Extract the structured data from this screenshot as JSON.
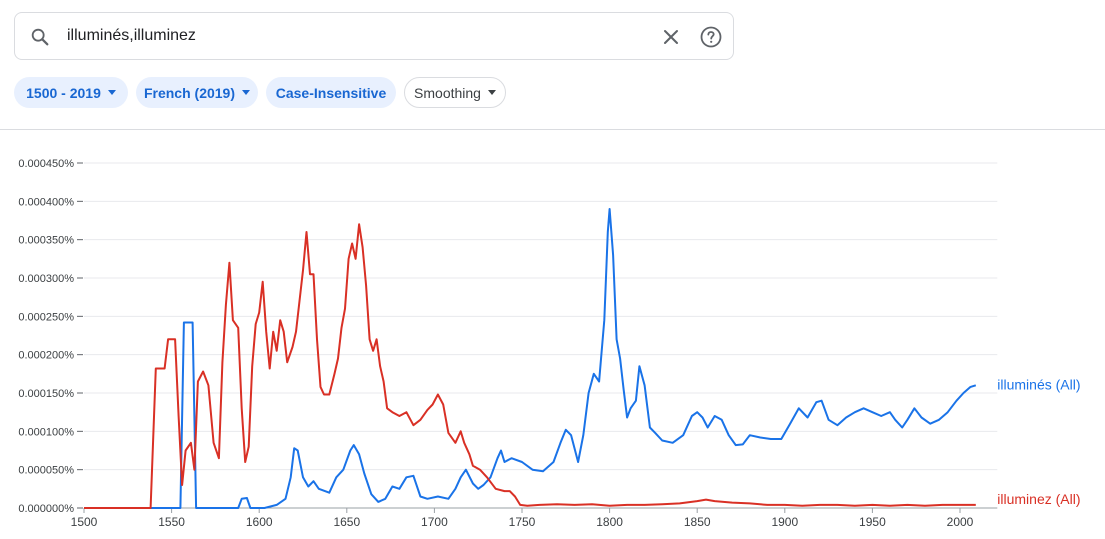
{
  "search": {
    "query": "illuminés,illuminez"
  },
  "filters": {
    "year_range": "1500 - 2019",
    "corpus": "French (2019)",
    "case": "Case-Insensitive",
    "smoothing": "Smoothing"
  },
  "icons": {
    "search": "search-icon",
    "clear": "close-icon",
    "help": "help-circle-icon",
    "dropdown": "caret-down-icon"
  },
  "colors": {
    "chip_bg": "#e8f0fe",
    "chip_text": "#1967d2",
    "grid": "#e8eaed",
    "axis": "#9aa0a6"
  },
  "chart_data": {
    "type": "line",
    "xlim": [
      1500,
      2019
    ],
    "ylim": [
      0,
      0.00045
    ],
    "x_ticks": [
      1500,
      1550,
      1600,
      1650,
      1700,
      1750,
      1800,
      1850,
      1900,
      1950,
      2000
    ],
    "x_tick_labels": [
      "1500",
      "1550",
      "1600",
      "1650",
      "1700",
      "1750",
      "1800",
      "1850",
      "1900",
      "1950",
      "2000"
    ],
    "y_ticks": [
      0,
      5e-05,
      0.0001,
      0.00015,
      0.0002,
      0.00025,
      0.0003,
      0.00035,
      0.0004,
      0.00045
    ],
    "y_tick_labels": [
      "0.000000%",
      "0.000050%",
      "0.000100%",
      "0.000150%",
      "0.000200%",
      "0.000250%",
      "0.000300%",
      "0.000350%",
      "0.000400%",
      "0.000450%"
    ],
    "grid": true,
    "legend": "right end of lines",
    "series": [
      {
        "name": "illuminés (All)",
        "color": "#1a73e8",
        "points": [
          [
            1500,
            0
          ],
          [
            1555,
            0
          ],
          [
            1557,
            0.000242
          ],
          [
            1562,
            0.000242
          ],
          [
            1564,
            0
          ],
          [
            1588,
            0
          ],
          [
            1590,
            1.2e-05
          ],
          [
            1593,
            1.3e-05
          ],
          [
            1595,
            0
          ],
          [
            1603,
            0
          ],
          [
            1610,
            4e-06
          ],
          [
            1615,
            1.2e-05
          ],
          [
            1618,
            4e-05
          ],
          [
            1620,
            7.8e-05
          ],
          [
            1622,
            7.5e-05
          ],
          [
            1625,
            4e-05
          ],
          [
            1628,
            2.8e-05
          ],
          [
            1631,
            3.5e-05
          ],
          [
            1634,
            2.5e-05
          ],
          [
            1640,
            2e-05
          ],
          [
            1644,
            4e-05
          ],
          [
            1648,
            5e-05
          ],
          [
            1652,
            7.5e-05
          ],
          [
            1654,
            8.2e-05
          ],
          [
            1657,
            7e-05
          ],
          [
            1660,
            4.5e-05
          ],
          [
            1664,
            1.8e-05
          ],
          [
            1668,
            8e-06
          ],
          [
            1672,
            1.2e-05
          ],
          [
            1676,
            2.8e-05
          ],
          [
            1680,
            2.5e-05
          ],
          [
            1684,
            4e-05
          ],
          [
            1688,
            4.2e-05
          ],
          [
            1692,
            1.5e-05
          ],
          [
            1696,
            1.2e-05
          ],
          [
            1702,
            1.5e-05
          ],
          [
            1708,
            1.2e-05
          ],
          [
            1712,
            2.5e-05
          ],
          [
            1715,
            4e-05
          ],
          [
            1718,
            5e-05
          ],
          [
            1722,
            3.2e-05
          ],
          [
            1725,
            2.5e-05
          ],
          [
            1728,
            3e-05
          ],
          [
            1732,
            4e-05
          ],
          [
            1736,
            6.5e-05
          ],
          [
            1738,
            7.5e-05
          ],
          [
            1740,
            6e-05
          ],
          [
            1744,
            6.5e-05
          ],
          [
            1750,
            6e-05
          ],
          [
            1756,
            5e-05
          ],
          [
            1762,
            4.8e-05
          ],
          [
            1768,
            6e-05
          ],
          [
            1772,
            8.5e-05
          ],
          [
            1775,
            0.000102
          ],
          [
            1778,
            9.5e-05
          ],
          [
            1782,
            6e-05
          ],
          [
            1785,
            9.5e-05
          ],
          [
            1788,
            0.00015
          ],
          [
            1791,
            0.000175
          ],
          [
            1794,
            0.000165
          ],
          [
            1797,
            0.000245
          ],
          [
            1799,
            0.00036
          ],
          [
            1800,
            0.00039
          ],
          [
            1802,
            0.00033
          ],
          [
            1804,
            0.00022
          ],
          [
            1806,
            0.000195
          ],
          [
            1808,
            0.000155
          ],
          [
            1810,
            0.000118
          ],
          [
            1812,
            0.00013
          ],
          [
            1815,
            0.00014
          ],
          [
            1817,
            0.000185
          ],
          [
            1820,
            0.00016
          ],
          [
            1823,
            0.000105
          ],
          [
            1826,
            9.8e-05
          ],
          [
            1830,
            8.8e-05
          ],
          [
            1836,
            8.5e-05
          ],
          [
            1842,
            9.5e-05
          ],
          [
            1847,
            0.00012
          ],
          [
            1850,
            0.000125
          ],
          [
            1853,
            0.000118
          ],
          [
            1856,
            0.000105
          ],
          [
            1860,
            0.00012
          ],
          [
            1864,
            0.000115
          ],
          [
            1868,
            9.5e-05
          ],
          [
            1872,
            8.2e-05
          ],
          [
            1876,
            8.3e-05
          ],
          [
            1880,
            9.5e-05
          ],
          [
            1886,
            9.2e-05
          ],
          [
            1892,
            9e-05
          ],
          [
            1898,
            9e-05
          ],
          [
            1903,
            0.00011
          ],
          [
            1908,
            0.00013
          ],
          [
            1913,
            0.000118
          ],
          [
            1918,
            0.000138
          ],
          [
            1921,
            0.00014
          ],
          [
            1925,
            0.000115
          ],
          [
            1930,
            0.000108
          ],
          [
            1935,
            0.000118
          ],
          [
            1940,
            0.000125
          ],
          [
            1945,
            0.00013
          ],
          [
            1950,
            0.000125
          ],
          [
            1955,
            0.00012
          ],
          [
            1960,
            0.000125
          ],
          [
            1963,
            0.000115
          ],
          [
            1967,
            0.000105
          ],
          [
            1970,
            0.000115
          ],
          [
            1974,
            0.00013
          ],
          [
            1978,
            0.000118
          ],
          [
            1983,
            0.00011
          ],
          [
            1988,
            0.000115
          ],
          [
            1993,
            0.000125
          ],
          [
            1998,
            0.00014
          ],
          [
            2002,
            0.00015
          ],
          [
            2006,
            0.000158
          ],
          [
            2009,
            0.00016
          ]
        ]
      },
      {
        "name": "illuminez (All)",
        "color": "#d93025",
        "points": [
          [
            1500,
            0
          ],
          [
            1538,
            0
          ],
          [
            1541,
            0.000182
          ],
          [
            1546,
            0.000182
          ],
          [
            1548,
            0.00022
          ],
          [
            1552,
            0.00022
          ],
          [
            1554,
            0.00012
          ],
          [
            1556,
            3e-05
          ],
          [
            1558,
            7.5e-05
          ],
          [
            1561,
            8.5e-05
          ],
          [
            1563,
            5e-05
          ],
          [
            1565,
            0.000165
          ],
          [
            1568,
            0.000178
          ],
          [
            1571,
            0.00016
          ],
          [
            1574,
            8.5e-05
          ],
          [
            1577,
            6.5e-05
          ],
          [
            1579,
            0.00019
          ],
          [
            1581,
            0.000265
          ],
          [
            1583,
            0.00032
          ],
          [
            1585,
            0.000245
          ],
          [
            1588,
            0.000235
          ],
          [
            1590,
            0.00013
          ],
          [
            1592,
            6e-05
          ],
          [
            1594,
            8e-05
          ],
          [
            1596,
            0.000185
          ],
          [
            1598,
            0.00024
          ],
          [
            1600,
            0.000255
          ],
          [
            1602,
            0.000295
          ],
          [
            1604,
            0.00023
          ],
          [
            1606,
            0.000182
          ],
          [
            1608,
            0.00023
          ],
          [
            1610,
            0.000205
          ],
          [
            1612,
            0.000245
          ],
          [
            1614,
            0.00023
          ],
          [
            1616,
            0.00019
          ],
          [
            1619,
            0.00021
          ],
          [
            1621,
            0.00023
          ],
          [
            1623,
            0.00027
          ],
          [
            1625,
            0.00031
          ],
          [
            1627,
            0.00036
          ],
          [
            1629,
            0.000305
          ],
          [
            1631,
            0.000305
          ],
          [
            1633,
            0.00022
          ],
          [
            1635,
            0.000158
          ],
          [
            1637,
            0.000148
          ],
          [
            1640,
            0.000148
          ],
          [
            1643,
            0.000175
          ],
          [
            1645,
            0.000195
          ],
          [
            1647,
            0.000235
          ],
          [
            1649,
            0.00026
          ],
          [
            1651,
            0.000325
          ],
          [
            1653,
            0.000345
          ],
          [
            1655,
            0.000325
          ],
          [
            1657,
            0.00037
          ],
          [
            1659,
            0.00034
          ],
          [
            1661,
            0.00029
          ],
          [
            1663,
            0.00022
          ],
          [
            1665,
            0.000205
          ],
          [
            1667,
            0.00022
          ],
          [
            1669,
            0.000185
          ],
          [
            1671,
            0.000165
          ],
          [
            1673,
            0.00013
          ],
          [
            1676,
            0.000125
          ],
          [
            1680,
            0.00012
          ],
          [
            1684,
            0.000125
          ],
          [
            1688,
            0.000108
          ],
          [
            1692,
            0.000115
          ],
          [
            1696,
            0.000128
          ],
          [
            1699,
            0.000135
          ],
          [
            1702,
            0.000148
          ],
          [
            1705,
            0.000135
          ],
          [
            1708,
            9.8e-05
          ],
          [
            1712,
            8.5e-05
          ],
          [
            1715,
            0.0001
          ],
          [
            1717,
            8.5e-05
          ],
          [
            1720,
            7e-05
          ],
          [
            1722,
            5.5e-05
          ],
          [
            1726,
            5e-05
          ],
          [
            1730,
            4e-05
          ],
          [
            1735,
            2.5e-05
          ],
          [
            1740,
            2.2e-05
          ],
          [
            1743,
            2.2e-05
          ],
          [
            1746,
            1.5e-05
          ],
          [
            1749,
            4e-06
          ],
          [
            1753,
            3e-06
          ],
          [
            1760,
            4e-06
          ],
          [
            1770,
            5e-06
          ],
          [
            1780,
            4e-06
          ],
          [
            1790,
            5e-06
          ],
          [
            1800,
            3e-06
          ],
          [
            1810,
            4e-06
          ],
          [
            1820,
            4e-06
          ],
          [
            1830,
            5e-06
          ],
          [
            1840,
            6e-06
          ],
          [
            1850,
            9e-06
          ],
          [
            1855,
            1.1e-05
          ],
          [
            1860,
            9e-06
          ],
          [
            1870,
            7e-06
          ],
          [
            1880,
            6e-06
          ],
          [
            1890,
            4e-06
          ],
          [
            1900,
            4e-06
          ],
          [
            1910,
            3e-06
          ],
          [
            1920,
            4e-06
          ],
          [
            1930,
            4e-06
          ],
          [
            1940,
            3e-06
          ],
          [
            1950,
            4e-06
          ],
          [
            1960,
            3e-06
          ],
          [
            1970,
            4e-06
          ],
          [
            1980,
            3e-06
          ],
          [
            1990,
            4e-06
          ],
          [
            2000,
            4e-06
          ],
          [
            2009,
            4e-06
          ]
        ]
      }
    ]
  }
}
